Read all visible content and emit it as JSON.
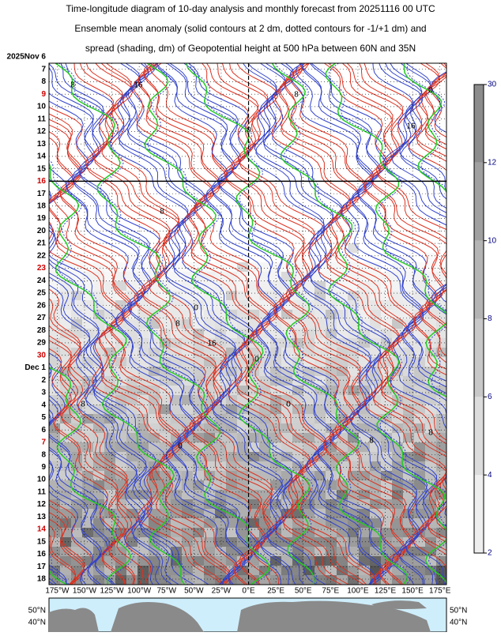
{
  "chart_data": {
    "type": "hovmoller",
    "title": [
      "Time-longitude diagram of 10-day analysis and monthly forecast from 20251116 00 UTC",
      "Ensemble mean anomaly (solid contours at 2 dm, dotted contours for -1/+1 dm) and",
      "spread (shading, dm) of Geopotential height at 500 hPa between 60N and 35N"
    ],
    "categories": [
      "2025Nov 6",
      "7",
      "8",
      "9",
      "10",
      "11",
      "12",
      "13",
      "14",
      "15",
      "16",
      "17",
      "18",
      "19",
      "20",
      "21",
      "22",
      "23",
      "24",
      "25",
      "26",
      "27",
      "28",
      "29",
      "30",
      "Dec 1",
      "2",
      "3",
      "4",
      "5",
      "6",
      "7",
      "8",
      "9",
      "10",
      "11",
      "12",
      "13",
      "14",
      "15",
      "16",
      "17",
      "18"
    ],
    "category_colors": [
      "#000000",
      "#000000",
      "#000000",
      "#cc0000",
      "#000000",
      "#000000",
      "#000000",
      "#000000",
      "#000000",
      "#000000",
      "#cc0000",
      "#000000",
      "#000000",
      "#000000",
      "#000000",
      "#000000",
      "#000000",
      "#cc0000",
      "#000000",
      "#000000",
      "#000000",
      "#000000",
      "#000000",
      "#000000",
      "#cc0000",
      "#000000",
      "#000000",
      "#000000",
      "#000000",
      "#000000",
      "#000000",
      "#cc0000",
      "#000000",
      "#000000",
      "#000000",
      "#000000",
      "#000000",
      "#000000",
      "#cc0000",
      "#000000",
      "#000000",
      "#000000",
      "#000000"
    ],
    "analysis_end_index": 10,
    "xlim": [
      -182.5,
      181
    ],
    "xticks": [
      {
        "value": -175,
        "label": "175°W"
      },
      {
        "value": -150,
        "label": "150°W"
      },
      {
        "value": -125,
        "label": "125°W"
      },
      {
        "value": -100,
        "label": "100°W"
      },
      {
        "value": -75,
        "label": "75°W"
      },
      {
        "value": -50,
        "label": "50°W"
      },
      {
        "value": -25,
        "label": "25°W"
      },
      {
        "value": 0,
        "label": "0°E"
      },
      {
        "value": 25,
        "label": "25°E"
      },
      {
        "value": 50,
        "label": "50°E"
      },
      {
        "value": 75,
        "label": "75°E"
      },
      {
        "value": 100,
        "label": "100°E"
      },
      {
        "value": 125,
        "label": "125°E"
      },
      {
        "value": 150,
        "label": "150°E"
      },
      {
        "value": 175,
        "label": "175°E"
      }
    ],
    "colorbar": {
      "levels": [
        2,
        4,
        6,
        8,
        10,
        12,
        30
      ],
      "colors": [
        "#eeeeee",
        "#dcdcdc",
        "#c8c8c8",
        "#b4b4b4",
        "#a0a0a0",
        "#8c8c8c"
      ]
    },
    "contour_labels": [
      8,
      16,
      0,
      8,
      16,
      0,
      8,
      0,
      16,
      8,
      0,
      8,
      0,
      8,
      0,
      8
    ],
    "map_labels": {
      "left": [
        "50°N",
        "40°N"
      ],
      "right": [
        "50°N",
        "40°N"
      ]
    }
  }
}
